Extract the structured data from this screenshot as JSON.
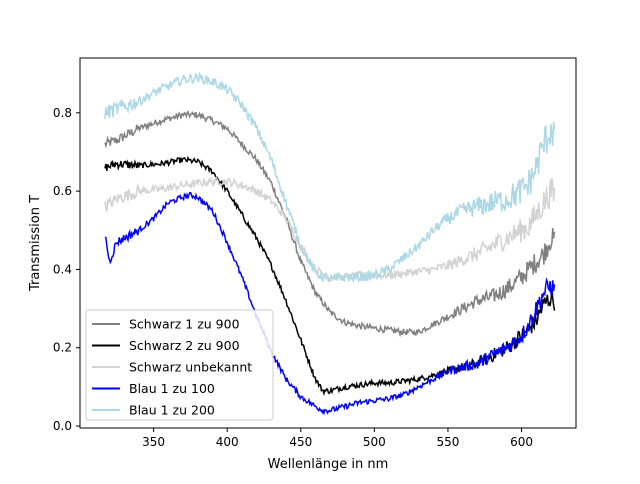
{
  "chart_data": {
    "type": "line",
    "title": "",
    "xlabel": "Wellenlänge in nm",
    "ylabel": "Transmission T",
    "xlim": [
      300,
      637
    ],
    "ylim": [
      -0.005,
      0.94
    ],
    "xticks": [
      350,
      400,
      450,
      500,
      550,
      600
    ],
    "yticks": [
      0.0,
      0.2,
      0.4,
      0.6,
      0.8
    ],
    "ytick_labels": [
      "0.0",
      "0.2",
      "0.4",
      "0.6",
      "0.8"
    ],
    "grid": false,
    "legend_position": "lower-left",
    "series": [
      {
        "name": "Schwarz 1 zu 900",
        "color": "#808080",
        "x": [
          317,
          325,
          340,
          355,
          370,
          380,
          390,
          400,
          410,
          420,
          430,
          440,
          450,
          460,
          470,
          480,
          490,
          500,
          510,
          520,
          530,
          540,
          550,
          560,
          570,
          580,
          590,
          600,
          605,
          610,
          615,
          620,
          623
        ],
        "y": [
          0.72,
          0.73,
          0.76,
          0.78,
          0.795,
          0.795,
          0.78,
          0.76,
          0.72,
          0.68,
          0.62,
          0.53,
          0.42,
          0.34,
          0.29,
          0.265,
          0.255,
          0.25,
          0.245,
          0.24,
          0.24,
          0.26,
          0.28,
          0.3,
          0.32,
          0.33,
          0.35,
          0.38,
          0.4,
          0.42,
          0.44,
          0.48,
          0.47
        ],
        "noise": 0.008
      },
      {
        "name": "Schwarz 2 zu 900",
        "color": "#000000",
        "x": [
          317,
          325,
          340,
          355,
          370,
          380,
          390,
          400,
          410,
          420,
          430,
          440,
          450,
          455,
          460,
          465,
          470,
          480,
          490,
          500,
          510,
          520,
          530,
          540,
          550,
          560,
          570,
          580,
          590,
          600,
          610,
          615,
          620,
          623
        ],
        "y": [
          0.66,
          0.67,
          0.665,
          0.67,
          0.68,
          0.675,
          0.65,
          0.6,
          0.54,
          0.48,
          0.41,
          0.32,
          0.22,
          0.17,
          0.12,
          0.09,
          0.09,
          0.1,
          0.105,
          0.11,
          0.11,
          0.115,
          0.12,
          0.13,
          0.14,
          0.15,
          0.16,
          0.18,
          0.2,
          0.23,
          0.27,
          0.31,
          0.33,
          0.32
        ],
        "noise": 0.007
      },
      {
        "name": "Schwarz unbekannt",
        "color": "#d3d3d3",
        "x": [
          317,
          325,
          340,
          355,
          370,
          380,
          390,
          400,
          410,
          420,
          430,
          440,
          450,
          460,
          470,
          480,
          490,
          500,
          510,
          520,
          530,
          540,
          550,
          560,
          570,
          580,
          590,
          600,
          605,
          610,
          615,
          620,
          623
        ],
        "y": [
          0.56,
          0.58,
          0.6,
          0.605,
          0.615,
          0.62,
          0.625,
          0.625,
          0.615,
          0.6,
          0.575,
          0.53,
          0.46,
          0.4,
          0.38,
          0.38,
          0.385,
          0.385,
          0.385,
          0.39,
          0.395,
          0.4,
          0.41,
          0.425,
          0.44,
          0.46,
          0.48,
          0.5,
          0.51,
          0.54,
          0.57,
          0.6,
          0.58
        ],
        "noise": 0.01
      },
      {
        "name": "Blau 1 zu 100",
        "color": "#0000ff",
        "x": [
          317,
          320,
          325,
          340,
          350,
          360,
          370,
          375,
          380,
          390,
          400,
          410,
          420,
          430,
          440,
          450,
          460,
          465,
          470,
          480,
          490,
          500,
          510,
          520,
          530,
          540,
          550,
          560,
          570,
          580,
          590,
          600,
          605,
          610,
          615,
          620,
          623
        ],
        "y": [
          0.49,
          0.42,
          0.47,
          0.5,
          0.53,
          0.57,
          0.585,
          0.59,
          0.585,
          0.55,
          0.47,
          0.38,
          0.28,
          0.19,
          0.12,
          0.075,
          0.05,
          0.04,
          0.04,
          0.05,
          0.06,
          0.065,
          0.07,
          0.08,
          0.1,
          0.12,
          0.14,
          0.15,
          0.16,
          0.18,
          0.2,
          0.23,
          0.26,
          0.3,
          0.34,
          0.36,
          0.34
        ],
        "noise": 0.007
      },
      {
        "name": "Blau 1 zu 200",
        "color": "#add8e6",
        "x": [
          317,
          325,
          340,
          355,
          370,
          380,
          390,
          400,
          410,
          420,
          430,
          440,
          450,
          460,
          470,
          480,
          490,
          500,
          510,
          520,
          530,
          540,
          550,
          560,
          570,
          580,
          590,
          600,
          605,
          610,
          615,
          620,
          623
        ],
        "y": [
          0.8,
          0.81,
          0.83,
          0.86,
          0.885,
          0.89,
          0.88,
          0.86,
          0.82,
          0.76,
          0.68,
          0.57,
          0.46,
          0.39,
          0.375,
          0.38,
          0.38,
          0.385,
          0.4,
          0.43,
          0.46,
          0.5,
          0.53,
          0.55,
          0.56,
          0.57,
          0.58,
          0.6,
          0.62,
          0.66,
          0.72,
          0.76,
          0.74
        ],
        "noise": 0.012
      }
    ]
  }
}
